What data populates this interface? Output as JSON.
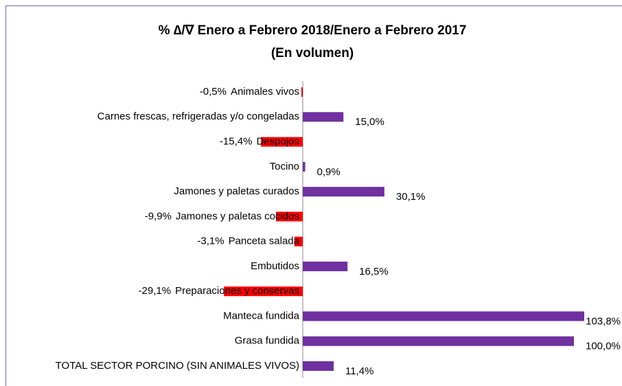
{
  "chart_data": {
    "type": "bar",
    "orientation": "horizontal",
    "title": "% ∆/∇ Enero a Febrero 2018/Enero a Febrero 2017",
    "subtitle": "(En volumen)",
    "categories": [
      "Animales vivos",
      "Carnes frescas, refrigeradas y/o congeladas",
      "Despojos",
      "Tocino",
      "Jamones y paletas curados",
      "Jamones y paletas cocidos",
      "Panceta salada",
      "Embutidos",
      "Preparaciones y conservas",
      "Manteca fundida",
      "Grasa fundida",
      "TOTAL SECTOR PORCINO (SIN ANIMALES VIVOS)"
    ],
    "values": [
      -0.5,
      15.0,
      -15.4,
      0.9,
      30.1,
      -9.9,
      -3.1,
      16.5,
      -29.1,
      103.8,
      100.0,
      11.4
    ],
    "value_labels": [
      "-0,5%",
      "15,0%",
      "-15,4%",
      "0,9%",
      "30,1%",
      "-9,9%",
      "-3,1%",
      "16,5%",
      "-29,1%",
      "103,8%",
      "100,0%",
      "11,4%"
    ],
    "color_positive": "#7030a0",
    "color_negative": "#ff0000"
  }
}
